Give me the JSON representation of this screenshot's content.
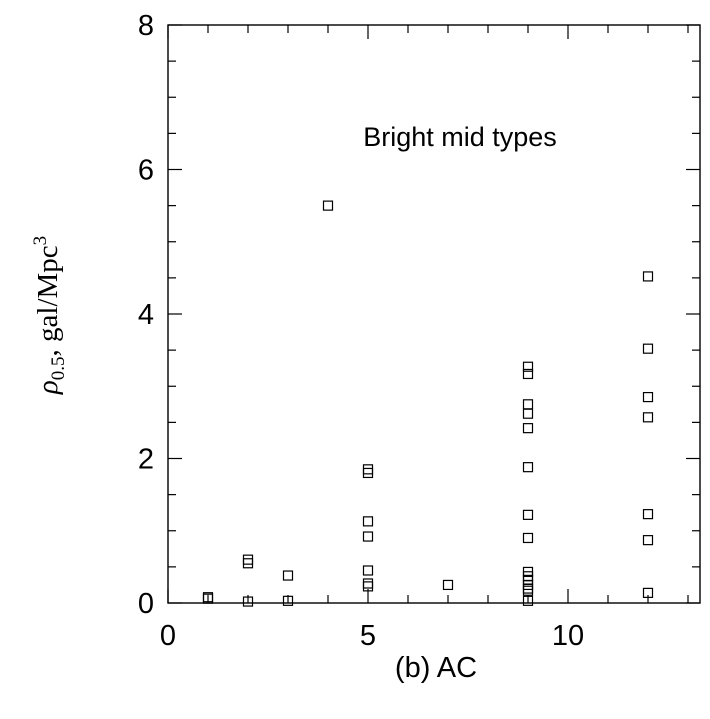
{
  "chart_data": {
    "type": "scatter",
    "title": "",
    "annotation": "Bright mid types",
    "xlabel": "(b) AC",
    "ylabel": {
      "rho": "ρ",
      "sub": "0.5",
      "rest": ",  gal/Mpc",
      "sup": "3"
    },
    "xlim": [
      0,
      13.3
    ],
    "ylim": [
      0,
      8
    ],
    "x_ticks": [
      0,
      5,
      10
    ],
    "x_tick_labels": [
      "0",
      "5",
      "10"
    ],
    "y_ticks": [
      0,
      2,
      4,
      6,
      8
    ],
    "y_tick_labels": [
      "0",
      "2",
      "4",
      "6",
      "8"
    ],
    "grid": false,
    "legend": "none",
    "marker": "open-square",
    "series": [
      {
        "points": [
          [
            1,
            0.08
          ],
          [
            1,
            0.06
          ],
          [
            2,
            0.6
          ],
          [
            2,
            0.55
          ],
          [
            2,
            0.02
          ],
          [
            3,
            0.38
          ],
          [
            3,
            0.03
          ],
          [
            4,
            5.5
          ],
          [
            5,
            1.85
          ],
          [
            5,
            1.8
          ],
          [
            5,
            1.13
          ],
          [
            5,
            0.92
          ],
          [
            5,
            0.45
          ],
          [
            5,
            0.27
          ],
          [
            5,
            0.23
          ],
          [
            7,
            0.25
          ],
          [
            9,
            3.27
          ],
          [
            9,
            3.17
          ],
          [
            9,
            2.75
          ],
          [
            9,
            2.62
          ],
          [
            9,
            2.42
          ],
          [
            9,
            1.88
          ],
          [
            9,
            1.22
          ],
          [
            9,
            0.9
          ],
          [
            9,
            0.43
          ],
          [
            9,
            0.37
          ],
          [
            9,
            0.32
          ],
          [
            9,
            0.25
          ],
          [
            9,
            0.2
          ],
          [
            9,
            0.17
          ],
          [
            9,
            0.03
          ],
          [
            12,
            4.52
          ],
          [
            12,
            3.52
          ],
          [
            12,
            2.85
          ],
          [
            12,
            2.57
          ],
          [
            12,
            1.23
          ],
          [
            12,
            0.87
          ],
          [
            12,
            0.14
          ]
        ]
      }
    ]
  }
}
